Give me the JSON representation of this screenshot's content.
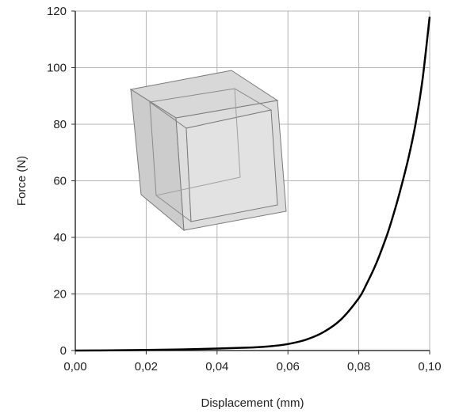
{
  "chart_data": {
    "type": "line",
    "title": "",
    "xlabel": "Displacement (mm)",
    "ylabel": "Force (N)",
    "xlim": [
      0,
      0.1
    ],
    "ylim": [
      0,
      120
    ],
    "x_ticks": [
      0,
      0.02,
      0.04,
      0.06,
      0.08,
      0.1
    ],
    "x_tick_labels": [
      "0,00",
      "0,02",
      "0,04",
      "0,06",
      "0,08",
      "0,10"
    ],
    "y_ticks": [
      0,
      20,
      40,
      60,
      80,
      100,
      120
    ],
    "y_tick_labels": [
      "0",
      "20",
      "40",
      "60",
      "80",
      "100",
      "120"
    ],
    "grid": true,
    "legend": "none",
    "series": [
      {
        "color": "#000000",
        "x": [
          0.0,
          0.01,
          0.02,
          0.03,
          0.04,
          0.05,
          0.055,
          0.06,
          0.065,
          0.07,
          0.075,
          0.08,
          0.082,
          0.085,
          0.088,
          0.09,
          0.092,
          0.094,
          0.096,
          0.098,
          0.1
        ],
        "y": [
          0.0,
          0.05,
          0.2,
          0.4,
          0.7,
          1.1,
          1.5,
          2.3,
          3.8,
          6.5,
          11,
          18.5,
          23,
          31,
          41,
          49,
          58,
          68,
          80,
          96,
          118
        ]
      }
    ],
    "inset": {
      "description_icon": "deformed-cube-icon"
    }
  }
}
